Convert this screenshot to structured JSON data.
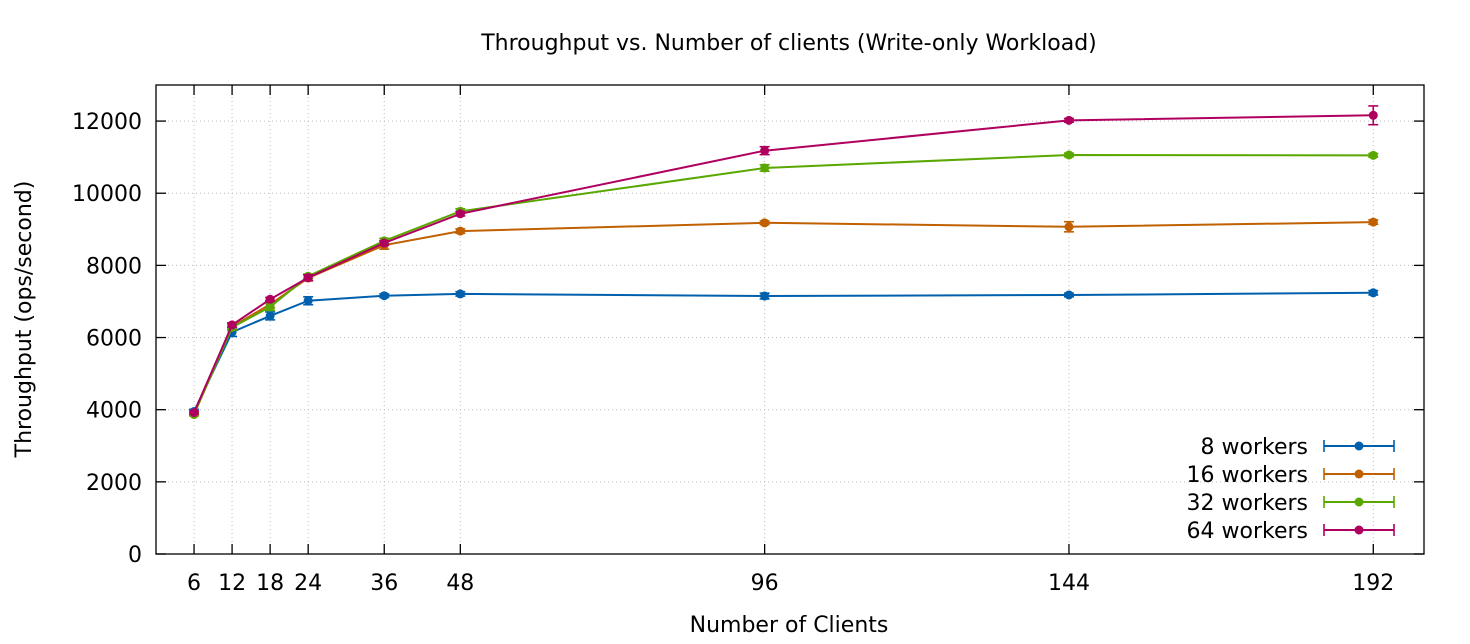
{
  "chart_data": {
    "type": "line",
    "title": "Throughput vs. Number of clients (Write-only Workload)",
    "xlabel": "Number of Clients",
    "ylabel": "Throughput (ops/second)",
    "x": [
      6,
      12,
      18,
      24,
      36,
      48,
      96,
      144,
      192
    ],
    "x_tick_labels": [
      "6",
      "12",
      "18",
      "24",
      "36",
      "48",
      "96",
      "144",
      "192"
    ],
    "xlim": [
      0,
      200
    ],
    "ylim": [
      0,
      13000
    ],
    "y_ticks": [
      0,
      2000,
      4000,
      6000,
      8000,
      10000,
      12000
    ],
    "y_tick_labels": [
      "0",
      "2000",
      "4000",
      "6000",
      "8000",
      "10000",
      "12000"
    ],
    "grid": true,
    "legend_position": "bottom-right",
    "series": [
      {
        "name": "8 workers",
        "color": "#0060ad",
        "values": [
          3950,
          6150,
          6600,
          7020,
          7160,
          7210,
          7150,
          7180,
          7240
        ],
        "errors": [
          60,
          120,
          110,
          110,
          50,
          60,
          80,
          50,
          60
        ]
      },
      {
        "name": "16 workers",
        "color": "#c06000",
        "values": [
          3870,
          6300,
          6920,
          7650,
          8560,
          8950,
          9180,
          9070,
          9200
        ],
        "errors": [
          40,
          80,
          100,
          80,
          110,
          60,
          50,
          140,
          60
        ]
      },
      {
        "name": "32 workers",
        "color": "#5aa700",
        "values": [
          3870,
          6280,
          6850,
          7700,
          8680,
          9500,
          10700,
          11060,
          11050
        ],
        "errors": [
          40,
          70,
          100,
          60,
          70,
          70,
          90,
          50,
          50
        ]
      },
      {
        "name": "64 workers",
        "color": "#b0005f",
        "values": [
          3920,
          6350,
          7060,
          7660,
          8620,
          9430,
          11180,
          12020,
          12160
        ],
        "errors": [
          40,
          60,
          50,
          80,
          60,
          60,
          110,
          50,
          260
        ]
      }
    ]
  }
}
